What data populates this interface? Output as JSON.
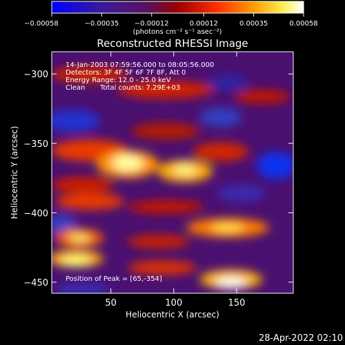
{
  "chart_data": {
    "type": "heatmap",
    "title": "Reconstructed RHESSI Image",
    "xlabel": "Heliocentric X (arcsec)",
    "ylabel": "Heliocentric Y (arcsec)",
    "xlim": [
      3,
      195
    ],
    "ylim": [
      -458,
      -284
    ],
    "x_ticks": [
      50,
      100,
      150
    ],
    "y_ticks": [
      -300,
      -350,
      -400,
      -450
    ],
    "colorbar": {
      "range": [
        -0.00058,
        0.00058
      ],
      "tick_values": [
        -0.00058,
        -0.00035,
        -0.00012,
        0.00012,
        0.00035,
        0.00058
      ],
      "tick_labels": [
        "-0.00058",
        "-0.00035",
        "-0.00012",
        "0.00012",
        "0.00035",
        "0.00058"
      ],
      "unit_label": "(photons cm⁻² s⁻¹ asec⁻²)",
      "colormap": [
        "#0000ff",
        "#4b0082",
        "#8b0000",
        "#ff2a00",
        "#ff8c00",
        "#ffff66",
        "#ffffff"
      ]
    },
    "annotations": {
      "time_range": "14-Jan-2003 07:59:56.000 to 08:05:56.000",
      "detectors": "Detectors: 3F 4F 5F 6F 7F 8F, Att 0",
      "energy": "Energy Range: 12.0 - 25.0 keV",
      "method": "Clean",
      "counts": "Total counts: 7.29E+03",
      "peak": "Position of Peak = [65,-354]"
    },
    "peak": {
      "x": 65,
      "y": -354
    },
    "grid": false
  },
  "footer": {
    "timestamp": "28-Apr-2022 02:10"
  }
}
